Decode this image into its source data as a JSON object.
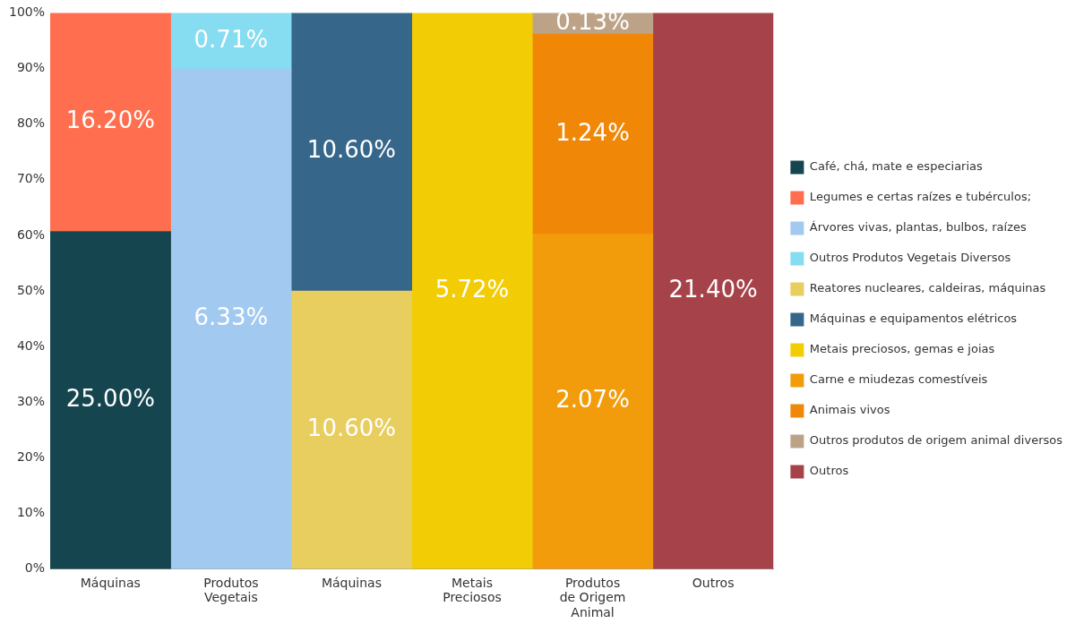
{
  "chart_data": {
    "type": "bar",
    "stacked": true,
    "grid": false,
    "legend": "right",
    "categories": [
      "Máquinas",
      "Produtos Vegetais",
      "Máquinas",
      "Metais Preciosos",
      "Produtos de Origem Animal",
      "Outros"
    ],
    "ylim": [
      0,
      100
    ],
    "yticks": [
      {
        "value": 0,
        "label": "0%"
      },
      {
        "value": 10,
        "label": "10%"
      },
      {
        "value": 20,
        "label": "20%"
      },
      {
        "value": 30,
        "label": "30%"
      },
      {
        "value": 40,
        "label": "40%"
      },
      {
        "value": 50,
        "label": "50%"
      },
      {
        "value": 60,
        "label": "60%"
      },
      {
        "value": 70,
        "label": "70%"
      },
      {
        "value": 80,
        "label": "80%"
      },
      {
        "value": 90,
        "label": "90%"
      },
      {
        "value": 100,
        "label": "100%"
      }
    ],
    "annotations": [
      "25.00%",
      "16.20%",
      "6.33%",
      "0.71%",
      "10.60%",
      "10.60%",
      "5.72%",
      "2.07%",
      "1.24%",
      "0.13%",
      "21.40%"
    ],
    "series": [
      {
        "name": "Café, chá, mate e especiarias",
        "color": "#15454f",
        "values": [
          60.7,
          null,
          null,
          null,
          null,
          null
        ]
      },
      {
        "name": "Legumes e certas raízes e tubérculos;",
        "color": "#ff6f4f",
        "values": [
          39.3,
          null,
          null,
          null,
          null,
          null
        ]
      },
      {
        "name": "Árvores vivas, plantas, bulbos, raízes",
        "color": "#a2c9f0",
        "values": [
          null,
          89.9,
          null,
          null,
          null,
          null
        ]
      },
      {
        "name": "Outros Produtos Vegetais Diversos",
        "color": "#86dcf0",
        "values": [
          null,
          10.1,
          null,
          null,
          null,
          null
        ]
      },
      {
        "name": "Reatores nucleares, caldeiras, máquinas",
        "color": "#e8cd5f",
        "values": [
          null,
          null,
          50,
          null,
          null,
          null
        ]
      },
      {
        "name": "Máquinas e equipamentos elétricos",
        "color": "#36668a",
        "values": [
          null,
          null,
          50,
          null,
          null,
          null
        ]
      },
      {
        "name": "Metais preciosos, gemas e joias",
        "color": "#f2cd06",
        "values": [
          null,
          null,
          null,
          100,
          null,
          null
        ]
      },
      {
        "name": "Carne e miudezas comestíveis",
        "color": "#f39c0b",
        "values": [
          null,
          null,
          null,
          null,
          60.2,
          null
        ]
      },
      {
        "name": "Animais vivos",
        "color": "#f08706",
        "values": [
          null,
          null,
          null,
          null,
          36.0,
          null
        ]
      },
      {
        "name": "Outros produtos de origem animal diversos",
        "color": "#bca388",
        "values": [
          null,
          null,
          null,
          null,
          3.8,
          null
        ]
      },
      {
        "name": "Outros",
        "color": "#a6434a",
        "values": [
          null,
          null,
          null,
          null,
          null,
          100
        ]
      }
    ]
  }
}
